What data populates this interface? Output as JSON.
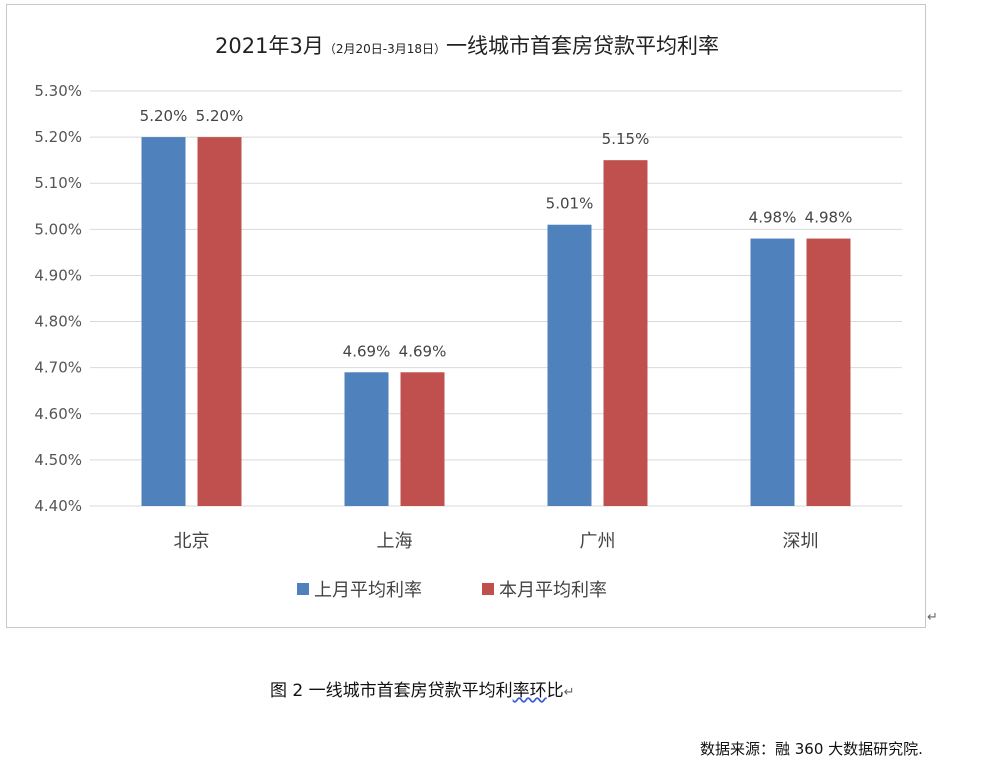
{
  "chart_data": {
    "type": "bar",
    "title": "2021年3月",
    "subtitle_paren": "（2月20日-3月18日）",
    "title_suffix": "一线城市首套房贷款平均利率",
    "categories": [
      "北京",
      "上海",
      "广州",
      "深圳"
    ],
    "series": [
      {
        "name": "上月平均利率",
        "values": [
          5.2,
          4.69,
          5.01,
          4.98
        ],
        "labels": [
          "5.20%",
          "4.69%",
          "5.01%",
          "4.98%"
        ],
        "color": "#4f81bd"
      },
      {
        "name": "本月平均利率",
        "values": [
          5.2,
          4.69,
          5.15,
          4.98
        ],
        "labels": [
          "5.20%",
          "4.69%",
          "5.15%",
          "4.98%"
        ],
        "color": "#c0504d"
      }
    ],
    "ylim": [
      4.4,
      5.3
    ],
    "yticks": [
      "4.40%",
      "4.50%",
      "4.60%",
      "4.70%",
      "4.80%",
      "4.90%",
      "5.00%",
      "5.10%",
      "5.20%",
      "5.30%"
    ],
    "grid": true,
    "legend_position": "bottom"
  },
  "caption": {
    "prefix": "图 2",
    "text": "一线城市首套房贷款平均利",
    "underlined": "率环",
    "suffix": "比"
  },
  "source": "数据来源：融 360 大数据研究院.",
  "paragraph_mark": "↵"
}
